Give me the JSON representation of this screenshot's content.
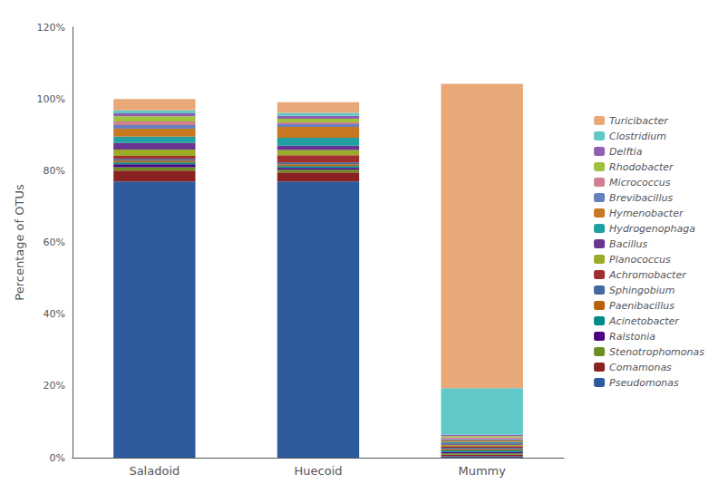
{
  "chart_data": {
    "type": "bar",
    "stacked": true,
    "grid": false,
    "legend": "right",
    "ylabel": "Percentage of OTUs",
    "categories": [
      "Saladoid",
      "Huecoid",
      "Mummy"
    ],
    "ylim": [
      0,
      1.2
    ],
    "yticks": [
      {
        "value": 0.0,
        "label": "0%"
      },
      {
        "value": 0.2,
        "label": "20%"
      },
      {
        "value": 0.4,
        "label": "40%"
      },
      {
        "value": 0.6,
        "label": "60%"
      },
      {
        "value": 0.8,
        "label": "80%"
      },
      {
        "value": 1.0,
        "label": "100%"
      },
      {
        "value": 1.2,
        "label": "120%"
      }
    ],
    "series": [
      {
        "name": "Pseudomonas",
        "color": "#2e5b9e",
        "values": [
          0.77,
          0.77,
          0.004
        ]
      },
      {
        "name": "Comamonas",
        "color": "#8b2222",
        "values": [
          0.03,
          0.025,
          0.004
        ]
      },
      {
        "name": "Stenotrophomonas",
        "color": "#6b8e23",
        "values": [
          0.01,
          0.008,
          0.004
        ]
      },
      {
        "name": "Ralstonia",
        "color": "#4b0082",
        "values": [
          0.008,
          0.005,
          0.004
        ]
      },
      {
        "name": "Acinetobacter",
        "color": "#008b8b",
        "values": [
          0.005,
          0.005,
          0.004
        ]
      },
      {
        "name": "Paenibacillus",
        "color": "#b8620a",
        "values": [
          0.005,
          0.005,
          0.004
        ]
      },
      {
        "name": "Sphingobium",
        "color": "#4169a0",
        "values": [
          0.005,
          0.005,
          0.004
        ]
      },
      {
        "name": "Achromobacter",
        "color": "#a03030",
        "values": [
          0.008,
          0.02,
          0.004
        ]
      },
      {
        "name": "Planococcus",
        "color": "#9aab28",
        "values": [
          0.018,
          0.015,
          0.004
        ]
      },
      {
        "name": "Bacillus",
        "color": "#6a3590",
        "values": [
          0.018,
          0.012,
          0.004
        ]
      },
      {
        "name": "Hydrogenophaga",
        "color": "#20a0a0",
        "values": [
          0.018,
          0.022,
          0.004
        ]
      },
      {
        "name": "Hymenobacter",
        "color": "#c87820",
        "values": [
          0.022,
          0.03,
          0.004
        ]
      },
      {
        "name": "Brevibacillus",
        "color": "#6680c0",
        "values": [
          0.01,
          0.008,
          0.004
        ]
      },
      {
        "name": "Micrococcus",
        "color": "#d08090",
        "values": [
          0.01,
          0.005,
          0.004
        ]
      },
      {
        "name": "Rhodobacter",
        "color": "#a0c040",
        "values": [
          0.015,
          0.01,
          0.004
        ]
      },
      {
        "name": "Delftia",
        "color": "#9060b0",
        "values": [
          0.008,
          0.008,
          0.004
        ]
      },
      {
        "name": "Clostridium",
        "color": "#60c8c8",
        "values": [
          0.008,
          0.008,
          0.13
        ]
      },
      {
        "name": "Turicibacter",
        "color": "#e8a878",
        "values": [
          0.032,
          0.03,
          0.848
        ]
      }
    ]
  }
}
